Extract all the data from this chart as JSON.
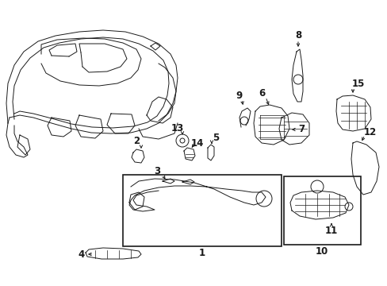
{
  "bg_color": "#ffffff",
  "line_color": "#1a1a1a",
  "fig_width": 4.89,
  "fig_height": 3.6,
  "dpi": 100,
  "label_fontsize": 8.5,
  "lw": 0.7
}
